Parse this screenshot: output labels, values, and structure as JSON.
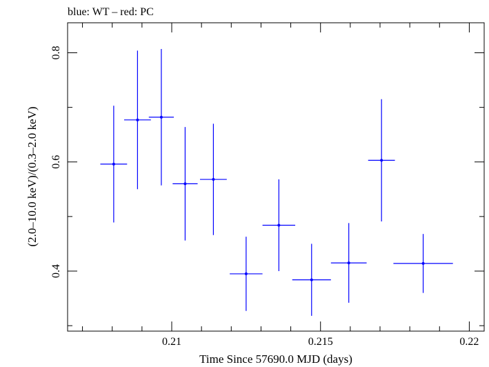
{
  "chart_data": {
    "type": "scatter",
    "title": "blue: WT – red: PC",
    "xlabel": "Time Since 57690.0 MJD (days)",
    "ylabel": "(2.0–10.0 keV)/(0.3–2.0 keV)",
    "xlim": [
      0.2065,
      0.2205
    ],
    "ylim": [
      0.29,
      0.855
    ],
    "x_ticks": [
      {
        "value": 0.21,
        "label": "0.21"
      },
      {
        "value": 0.215,
        "label": "0.215"
      },
      {
        "value": 0.22,
        "label": "0.22"
      }
    ],
    "x_minor_step": 0.001,
    "y_ticks": [
      {
        "value": 0.4,
        "label": "0.4"
      },
      {
        "value": 0.6,
        "label": "0.6"
      },
      {
        "value": 0.8,
        "label": "0.8"
      }
    ],
    "y_minor_step": 0.1,
    "series": [
      {
        "name": "WT",
        "color": "#0000ff",
        "points": [
          {
            "x": 0.20805,
            "xerr": 0.00045,
            "y": 0.596,
            "yerr_low": 0.107,
            "yerr_high": 0.107
          },
          {
            "x": 0.20885,
            "xerr": 0.00045,
            "y": 0.677,
            "yerr_low": 0.127,
            "yerr_high": 0.127
          },
          {
            "x": 0.20965,
            "xerr": 0.00042,
            "y": 0.682,
            "yerr_low": 0.125,
            "yerr_high": 0.125
          },
          {
            "x": 0.21045,
            "xerr": 0.00042,
            "y": 0.56,
            "yerr_low": 0.104,
            "yerr_high": 0.104
          },
          {
            "x": 0.2114,
            "xerr": 0.00045,
            "y": 0.568,
            "yerr_low": 0.102,
            "yerr_high": 0.102
          },
          {
            "x": 0.2125,
            "xerr": 0.00055,
            "y": 0.395,
            "yerr_low": 0.068,
            "yerr_high": 0.068
          },
          {
            "x": 0.2136,
            "xerr": 0.00055,
            "y": 0.484,
            "yerr_low": 0.084,
            "yerr_high": 0.084
          },
          {
            "x": 0.2147,
            "xerr": 0.00065,
            "y": 0.384,
            "yerr_low": 0.066,
            "yerr_high": 0.066
          },
          {
            "x": 0.21595,
            "xerr": 0.0006,
            "y": 0.415,
            "yerr_low": 0.073,
            "yerr_high": 0.073
          },
          {
            "x": 0.21705,
            "xerr": 0.00045,
            "y": 0.603,
            "yerr_low": 0.112,
            "yerr_high": 0.112
          },
          {
            "x": 0.21845,
            "xerr": 0.001,
            "y": 0.414,
            "yerr_low": 0.054,
            "yerr_high": 0.054
          }
        ]
      }
    ]
  }
}
